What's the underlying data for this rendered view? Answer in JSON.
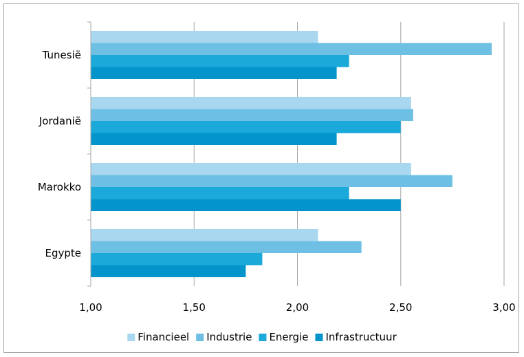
{
  "chart_data": {
    "type": "bar",
    "orientation": "horizontal",
    "title": "",
    "xlabel": "",
    "ylabel": "",
    "categories": [
      "Egypte",
      "Marokko",
      "Jordanië",
      "Tunesië"
    ],
    "xlim": [
      1.0,
      3.0
    ],
    "xticks": [
      "1,00",
      "1,50",
      "2,00",
      "2,50",
      "3,00"
    ],
    "xtick_values": [
      1.0,
      1.5,
      2.0,
      2.5,
      3.0
    ],
    "grid": "vertical",
    "legend_position": "bottom",
    "series": [
      {
        "name": "Financieel",
        "color": "#a9d7ef",
        "values": [
          2.1,
          2.55,
          2.55,
          2.1
        ]
      },
      {
        "name": "Industrie",
        "color": "#6dc0e4",
        "values": [
          2.31,
          2.75,
          2.56,
          2.94
        ]
      },
      {
        "name": "Energie",
        "color": "#1aa9d9",
        "values": [
          1.83,
          2.25,
          2.5,
          2.25
        ]
      },
      {
        "name": "Infrastructuur",
        "color": "#0294cb",
        "values": [
          1.75,
          2.5,
          2.19,
          2.19
        ]
      }
    ]
  }
}
